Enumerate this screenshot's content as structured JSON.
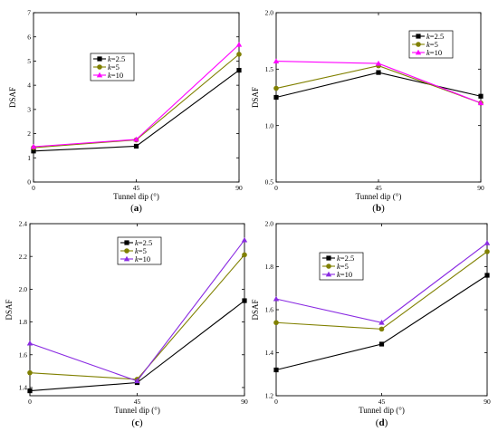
{
  "chart_data": [
    {
      "type": "line",
      "panel_label": "(a)",
      "xlabel": "Tunnel dip (°)",
      "ylabel": "DSAF",
      "x": [
        0,
        45,
        90
      ],
      "xticks": [
        "0",
        "45",
        "90"
      ],
      "ylim": [
        0,
        7
      ],
      "yticks": [
        "0",
        "1",
        "2",
        "3",
        "4",
        "5",
        "6",
        "7"
      ],
      "series": [
        {
          "name": "k=2.5",
          "values": [
            1.28,
            1.48,
            4.62
          ],
          "color": "#000000",
          "marker": "square"
        },
        {
          "name": "k=5",
          "values": [
            1.42,
            1.74,
            5.28
          ],
          "color": "#808000",
          "marker": "circle"
        },
        {
          "name": "k=10",
          "values": [
            1.46,
            1.76,
            5.68
          ],
          "color": "#ff00ff",
          "marker": "triangle"
        }
      ]
    },
    {
      "type": "line",
      "panel_label": "(b)",
      "xlabel": "Tunnel dip (°)",
      "ylabel": "DSAF",
      "x": [
        0,
        45,
        90
      ],
      "xticks": [
        "0",
        "45",
        "90"
      ],
      "ylim": [
        0.5,
        2.0
      ],
      "yticks": [
        "0.5",
        "1.0",
        "1.5",
        "2.0"
      ],
      "series": [
        {
          "name": "k=2.5",
          "values": [
            1.25,
            1.47,
            1.26
          ],
          "color": "#000000",
          "marker": "square"
        },
        {
          "name": "k=5",
          "values": [
            1.33,
            1.53,
            1.2
          ],
          "color": "#808000",
          "marker": "circle"
        },
        {
          "name": "k=10",
          "values": [
            1.57,
            1.55,
            1.2
          ],
          "color": "#ff00ff",
          "marker": "triangle"
        }
      ]
    },
    {
      "type": "line",
      "panel_label": "(c)",
      "xlabel": "Tunnel dip (°)",
      "ylabel": "DSAF",
      "x": [
        0,
        45,
        90
      ],
      "xticks": [
        "0",
        "45",
        "90"
      ],
      "ylim": [
        1.35,
        2.4
      ],
      "yticks": [
        "1.4",
        "1.6",
        "1.8",
        "2.0",
        "2.2",
        "2.4"
      ],
      "series": [
        {
          "name": "k=2.5",
          "values": [
            1.38,
            1.43,
            1.93
          ],
          "color": "#000000",
          "marker": "square"
        },
        {
          "name": "k=5",
          "values": [
            1.49,
            1.45,
            2.21
          ],
          "color": "#808000",
          "marker": "circle"
        },
        {
          "name": "k=10",
          "values": [
            1.67,
            1.44,
            2.3
          ],
          "color": "#8a2be2",
          "marker": "triangle"
        }
      ]
    },
    {
      "type": "line",
      "panel_label": "(d)",
      "xlabel": "Tunnel dip (°)",
      "ylabel": "DSAF",
      "x": [
        0,
        45,
        90
      ],
      "xticks": [
        "0",
        "45",
        "90"
      ],
      "ylim": [
        1.2,
        2.0
      ],
      "yticks": [
        "1.2",
        "1.4",
        "1.6",
        "1.8",
        "2.0"
      ],
      "series": [
        {
          "name": "k=2.5",
          "values": [
            1.32,
            1.44,
            1.76
          ],
          "color": "#000000",
          "marker": "square"
        },
        {
          "name": "k=5",
          "values": [
            1.54,
            1.51,
            1.87
          ],
          "color": "#808000",
          "marker": "circle"
        },
        {
          "name": "k=10",
          "values": [
            1.65,
            1.54,
            1.91
          ],
          "color": "#8a2be2",
          "marker": "triangle"
        }
      ]
    }
  ]
}
